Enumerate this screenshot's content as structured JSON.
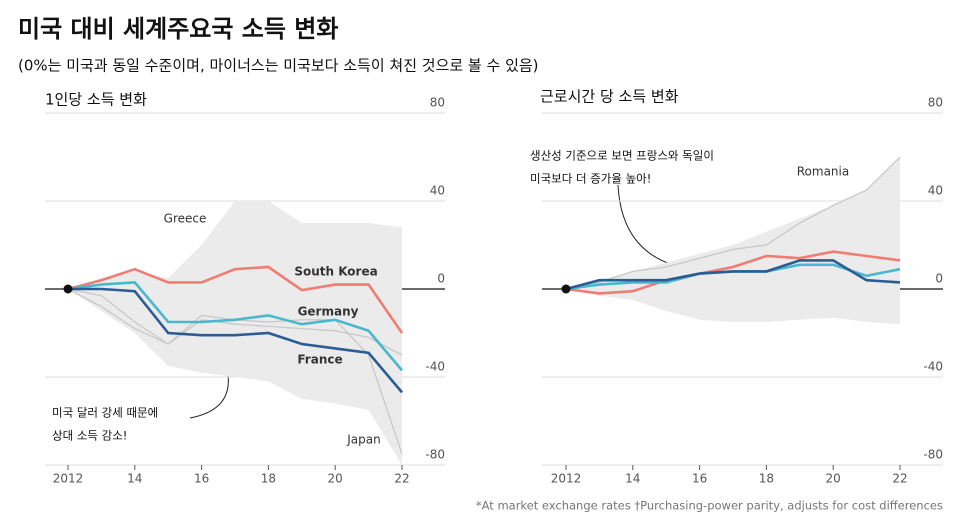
{
  "title": "미국 대비 세계주요국 소득 변화",
  "subtitle": "(0%는 미국과 동일 수준이며, 마이너스는 미국보다 소득이 쳐진 것으로 볼 수 있음)",
  "footnote": "*At market exchange rates †Purchasing-power parity, adjusts for cost differences",
  "chart_data": [
    {
      "type": "line",
      "title": "1인당 소득 변화",
      "annotation": [
        "미국 달러 강세 때문에",
        "상대 소득 감소!"
      ],
      "x": [
        2012,
        2013,
        2014,
        2015,
        2016,
        2017,
        2018,
        2019,
        2020,
        2021,
        2022
      ],
      "xlim": [
        2012,
        2022
      ],
      "xticks": [
        2012,
        {
          "value": 2014,
          "label": "14"
        },
        {
          "value": 2016,
          "label": "16"
        },
        {
          "value": 2018,
          "label": "18"
        },
        {
          "value": 2020,
          "label": "20"
        },
        {
          "value": 2022,
          "label": "22"
        }
      ],
      "ylim": [
        -80,
        80
      ],
      "yticks": [
        80,
        40,
        0,
        -40,
        -80
      ],
      "grid": true,
      "band_upper": [
        0,
        5,
        8,
        5,
        20,
        40,
        40,
        30,
        30,
        30,
        28
      ],
      "band_lower": [
        0,
        -10,
        -20,
        -35,
        -38,
        -40,
        -42,
        -50,
        -52,
        -55,
        -80
      ],
      "series": [
        {
          "name": "Greece",
          "color": "#c8c8c8",
          "values": [
            0,
            -8,
            -18,
            -25,
            -14,
            -16,
            -17,
            -18,
            -19,
            -22,
            -30
          ]
        },
        {
          "name": "Japan",
          "color": "#c8c8c8",
          "values": [
            0,
            -3,
            -15,
            -25,
            -12,
            -14,
            -15,
            -14,
            -14,
            -30,
            -75
          ]
        },
        {
          "name": "South Korea",
          "color": "#f07d73",
          "values": [
            0,
            4,
            9,
            3,
            3,
            9,
            10,
            -0.5,
            2,
            2,
            -20
          ]
        },
        {
          "name": "Germany",
          "color": "#4ab8cc",
          "values": [
            0,
            2,
            3,
            -15,
            -15,
            -14,
            -12,
            -16,
            -14,
            -19,
            -37
          ]
        },
        {
          "name": "France",
          "color": "#2b5c94",
          "values": [
            0,
            0,
            -1,
            -20,
            -21,
            -21,
            -20,
            -25,
            -27,
            -29,
            -47
          ]
        }
      ]
    },
    {
      "type": "line",
      "title": "근로시간 당 소득 변화",
      "annotation": [
        "생산성 기준으로 보면 프랑스와 독일이",
        "미국보다 더 증가율 높아!"
      ],
      "x": [
        2012,
        2013,
        2014,
        2015,
        2016,
        2017,
        2018,
        2019,
        2020,
        2021,
        2022
      ],
      "xlim": [
        2012,
        2022
      ],
      "xticks": [
        2012,
        {
          "value": 2014,
          "label": "14"
        },
        {
          "value": 2016,
          "label": "16"
        },
        {
          "value": 2018,
          "label": "18"
        },
        {
          "value": 2020,
          "label": "20"
        },
        {
          "value": 2022,
          "label": "22"
        }
      ],
      "ylim": [
        -80,
        80
      ],
      "yticks": [
        80,
        40,
        0,
        -40,
        -80
      ],
      "grid": true,
      "band_upper": [
        0,
        4,
        8,
        12,
        16,
        20,
        26,
        32,
        38,
        45,
        60
      ],
      "band_lower": [
        0,
        -3,
        -5,
        -10,
        -14,
        -15,
        -15,
        -14,
        -13,
        -15,
        -16
      ],
      "series": [
        {
          "name": "Romania",
          "color": "#c8c8c8",
          "values": [
            0,
            3,
            8,
            10,
            14,
            18,
            20,
            30,
            38,
            45,
            60
          ]
        },
        {
          "color": "#f07d73",
          "values": [
            0,
            -2,
            -1,
            4,
            7,
            10,
            15,
            14,
            17,
            15,
            13
          ]
        },
        {
          "color": "#4ab8cc",
          "values": [
            0,
            2,
            3,
            3,
            7,
            8,
            8,
            11,
            11,
            6,
            9
          ]
        },
        {
          "color": "#2b5c94",
          "values": [
            0,
            4,
            4,
            4,
            7,
            8,
            8,
            13,
            13,
            4,
            3
          ]
        }
      ]
    }
  ]
}
